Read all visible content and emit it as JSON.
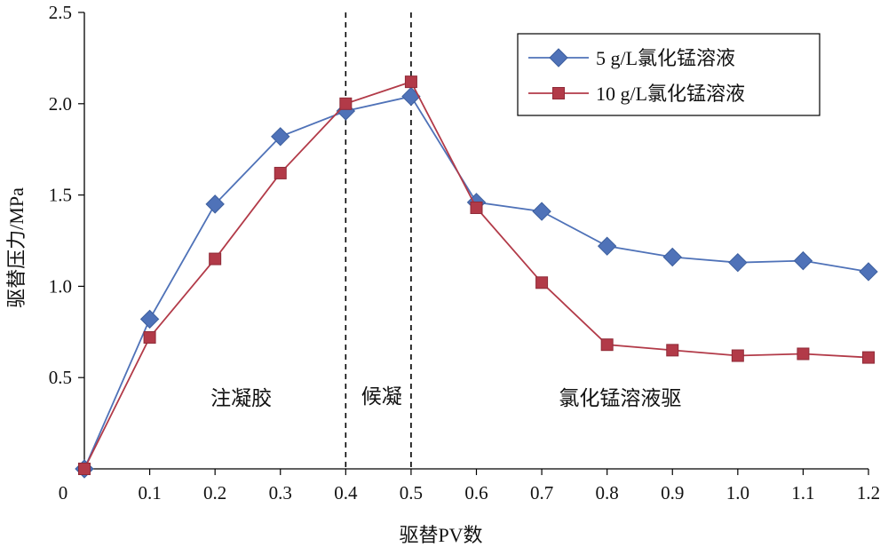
{
  "chart_data": {
    "type": "line",
    "title": "",
    "xlabel": "驱替PV数",
    "ylabel": "驱替压力/MPa",
    "xlim": [
      0,
      1.2
    ],
    "ylim": [
      0,
      2.5
    ],
    "grid": false,
    "legend_position": "top-right",
    "x_tick_labels": [
      "0",
      "0.1",
      "0.2",
      "0.3",
      "0.4",
      "0.5",
      "0.6",
      "0.7",
      "0.8",
      "0.9",
      "1.0",
      "1.1",
      "1.2"
    ],
    "y_tick_labels": [
      "0.5",
      "1.0",
      "1.5",
      "2.0",
      "2.5"
    ],
    "y_tick_values": [
      0.5,
      1.0,
      1.5,
      2.0,
      2.5
    ],
    "x": [
      0.0,
      0.1,
      0.2,
      0.3,
      0.4,
      0.5,
      0.6,
      0.7,
      0.8,
      0.9,
      1.0,
      1.1,
      1.2
    ],
    "series": [
      {
        "name": "5 g/L氯化锰溶液",
        "marker": "diamond",
        "color": "#4f72b8",
        "marker_color": "#4f72b8",
        "values": [
          0.0,
          0.82,
          1.45,
          1.82,
          1.96,
          2.04,
          1.46,
          1.41,
          1.22,
          1.16,
          1.13,
          1.14,
          1.08
        ]
      },
      {
        "name": "10 g/L氯化锰溶液",
        "marker": "square",
        "color": "#b23a48",
        "marker_color": "#b23a48",
        "values": [
          0.0,
          0.72,
          1.15,
          1.62,
          2.0,
          2.12,
          1.43,
          1.02,
          0.68,
          0.65,
          0.62,
          0.63,
          0.61
        ]
      }
    ],
    "reference_lines": [
      0.4,
      0.5
    ],
    "annotations": [
      {
        "text": "注凝胶",
        "x": 0.24,
        "y": 0.35
      },
      {
        "text": "候凝",
        "x": 0.455,
        "y": 0.36
      },
      {
        "text": "氯化锰溶液驱",
        "x": 0.82,
        "y": 0.35
      }
    ]
  }
}
